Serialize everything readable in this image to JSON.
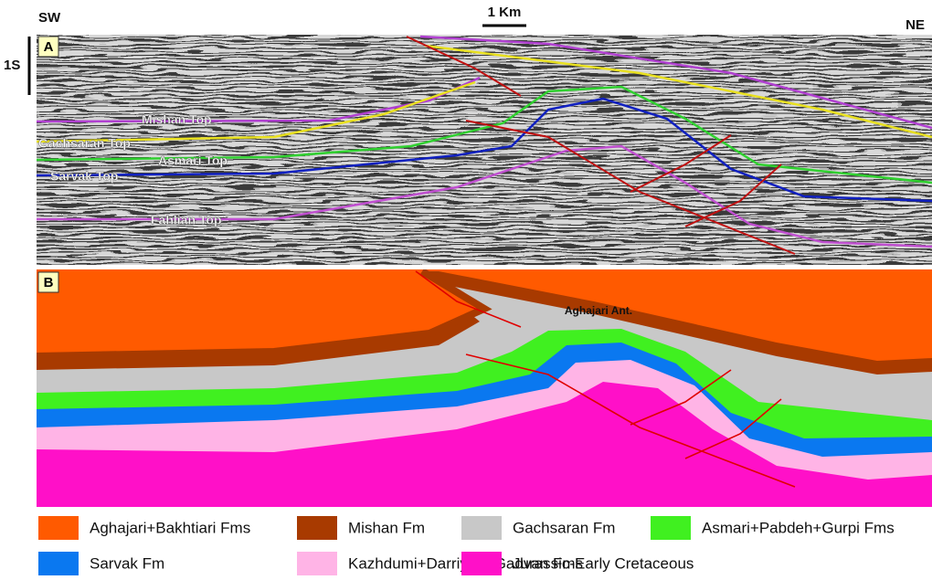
{
  "header": {
    "left": "SW",
    "right": "NE",
    "scale": "1 Km",
    "time_scale": "1S"
  },
  "panel_a": {
    "label": "A",
    "horizons": [
      {
        "name": "Mishan Top",
        "color": "#b040d0"
      },
      {
        "name": "Gachsaran Top",
        "color": "#e8e020"
      },
      {
        "name": "Asmari Top",
        "color": "#30d030"
      },
      {
        "name": "Sarvak Top",
        "color": "#1020c0"
      },
      {
        "name": "Fahlian Top",
        "color": "#c050d0"
      }
    ]
  },
  "panel_b": {
    "label": "B",
    "annotation": "Aghajari Ant."
  },
  "legend": [
    {
      "name": "Aghajari+Bakhtiari Fms",
      "color": "#ff5a00"
    },
    {
      "name": "Mishan Fm",
      "color": "#a83a00"
    },
    {
      "name": "Gachsaran Fm",
      "color": "#c8c8c8"
    },
    {
      "name": "Asmari+Pabdeh+Gurpi Fms",
      "color": "#40f020"
    },
    {
      "name": "Sarvak Fm",
      "color": "#0a78f0"
    },
    {
      "name": "Kazhdumi+Darriyan+Gadvan Fms",
      "color": "#ffb4e6"
    },
    {
      "name": "Jurassic-Early Cretaceous",
      "color": "#ff10c8"
    }
  ]
}
